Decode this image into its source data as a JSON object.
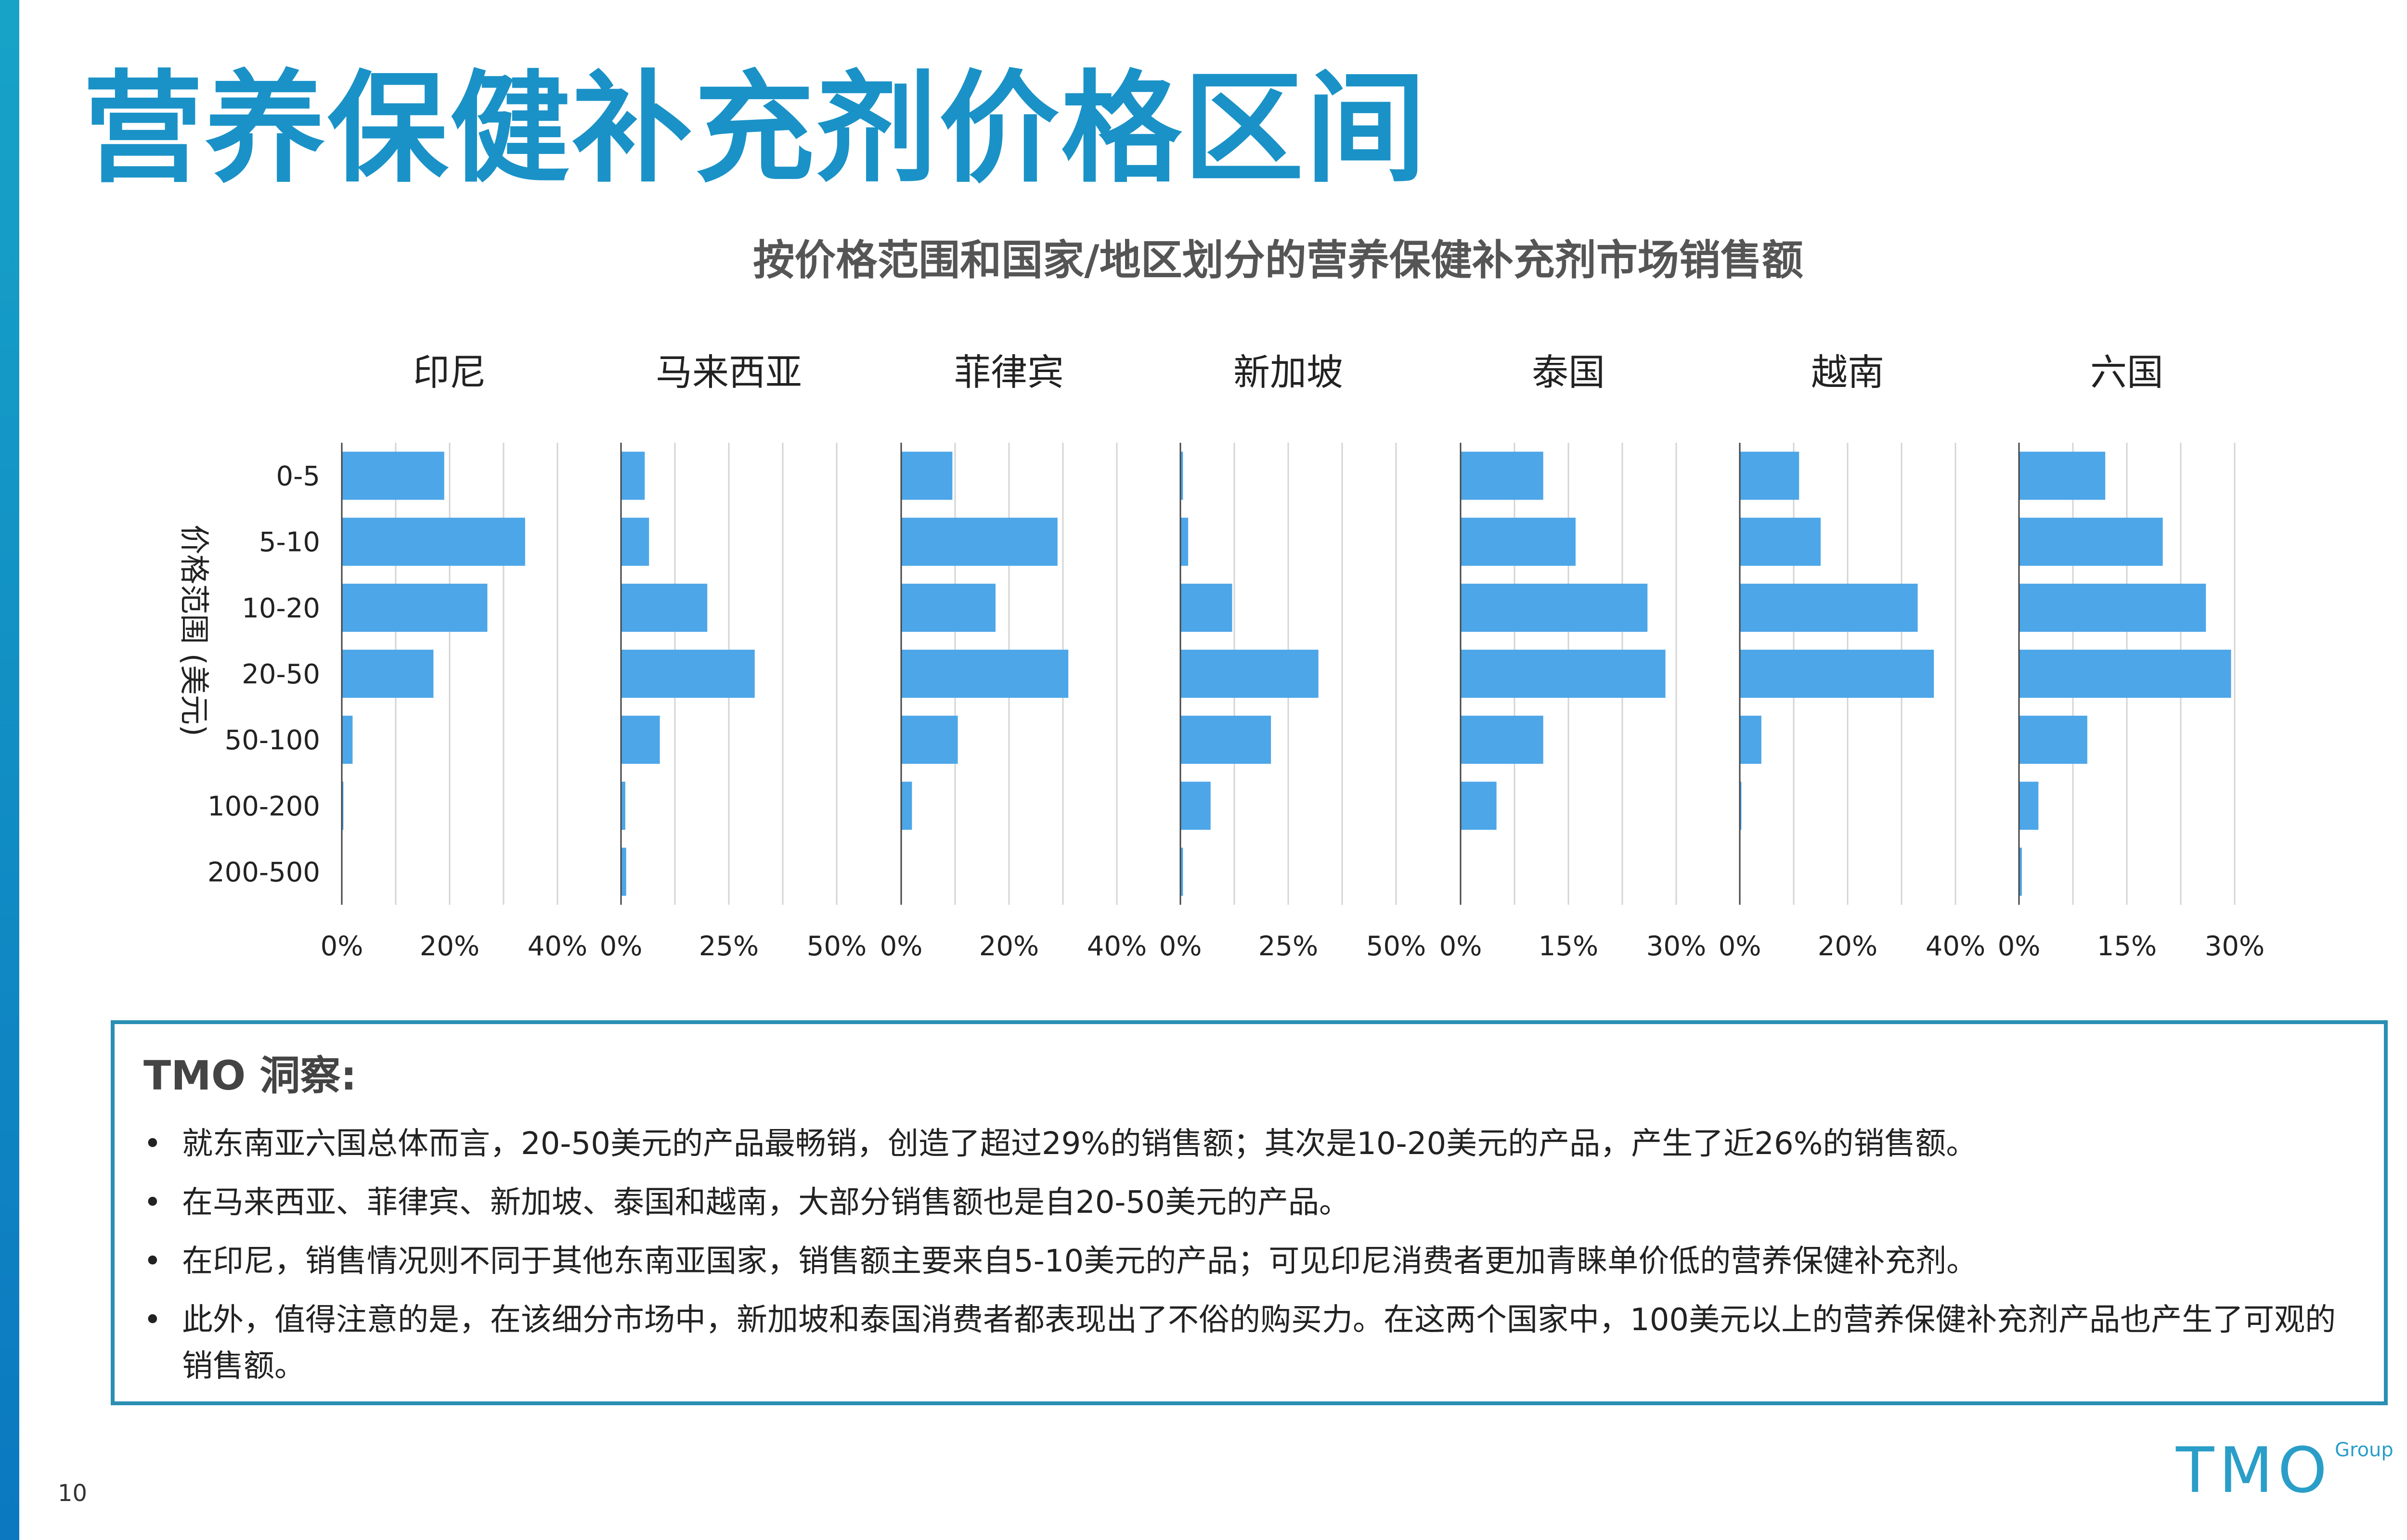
{
  "page": {
    "title": "营养保健补充剂价格区间",
    "page_number": "10",
    "logo_text": "TMO",
    "logo_sub": "Group"
  },
  "chart_data": {
    "type": "bar",
    "orientation": "horizontal",
    "title": "按价格范围和国家/地区划分的营养保健补充剂市场销售额",
    "ylabel": "价格范围 (美元)",
    "categories": [
      "0-5",
      "5-10",
      "10-20",
      "20-50",
      "50-100",
      "100-200",
      "200-500"
    ],
    "bar_color": "#4da6e8",
    "panels": [
      {
        "name": "印尼",
        "values": [
          19,
          34,
          27,
          17,
          2,
          0.3,
          0.1
        ],
        "xlim": [
          0,
          40
        ],
        "ticks": [
          0,
          20,
          40
        ],
        "tick_labels": [
          "0%",
          "20%",
          "40%"
        ]
      },
      {
        "name": "马来西亚",
        "values": [
          5.5,
          6.5,
          20,
          31,
          9,
          1,
          1.2
        ],
        "xlim": [
          0,
          50
        ],
        "ticks": [
          0,
          25,
          50
        ],
        "tick_labels": [
          "0%",
          "25%",
          "50%"
        ]
      },
      {
        "name": "菲律宾",
        "values": [
          9.5,
          29,
          17.5,
          31,
          10.5,
          2,
          0
        ],
        "xlim": [
          0,
          40
        ],
        "ticks": [
          0,
          20,
          40
        ],
        "tick_labels": [
          "0%",
          "20%",
          "40%"
        ]
      },
      {
        "name": "新加坡",
        "values": [
          0.6,
          1.8,
          12,
          32,
          21,
          7,
          0.6
        ],
        "xlim": [
          0,
          50
        ],
        "ticks": [
          0,
          25,
          50
        ],
        "tick_labels": [
          "0%",
          "25%",
          "50%"
        ]
      },
      {
        "name": "泰国",
        "values": [
          11.5,
          16,
          26,
          28.5,
          11.5,
          5,
          0
        ],
        "xlim": [
          0,
          30
        ],
        "ticks": [
          0,
          15,
          30
        ],
        "tick_labels": [
          "0%",
          "15%",
          "30%"
        ]
      },
      {
        "name": "越南",
        "values": [
          11,
          15,
          33,
          36,
          4,
          0.3,
          0
        ],
        "xlim": [
          0,
          40
        ],
        "ticks": [
          0,
          20,
          40
        ],
        "tick_labels": [
          "0%",
          "20%",
          "40%"
        ]
      },
      {
        "name": "六国",
        "values": [
          12,
          20,
          26,
          29.5,
          9.5,
          2.7,
          0.4
        ],
        "xlim": [
          0,
          30
        ],
        "ticks": [
          0,
          15,
          30
        ],
        "tick_labels": [
          "0%",
          "15%",
          "30%"
        ]
      }
    ],
    "grid": true,
    "legend": "none"
  },
  "insight": {
    "title": "TMO 洞察:",
    "bullets": [
      "就东南亚六国总体而言，20-50美元的产品最畅销，创造了超过29%的销售额；其次是10-20美元的产品，产生了近26%的销售额。",
      "在马来西亚、菲律宾、新加坡、泰国和越南，大部分销售额也是自20-50美元的产品。",
      "在印尼，销售情况则不同于其他东南亚国家，销售额主要来自5-10美元的产品；可见印尼消费者更加青睐单价低的营养保健补充剂。",
      "此外，值得注意的是，在该细分市场中，新加坡和泰国消费者都表现出了不俗的购买力。在这两个国家中，100美元以上的营养保健补充剂产品也产生了可观的销售额。"
    ]
  }
}
